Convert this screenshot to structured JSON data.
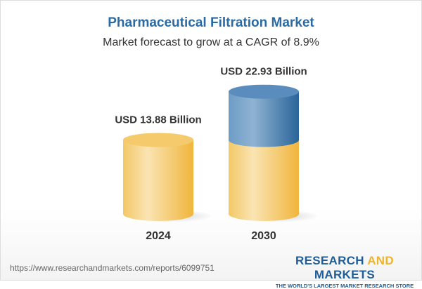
{
  "chart_data": {
    "type": "bar",
    "title": "Pharmaceutical Filtration Market",
    "subtitle": "Market forecast to grow at a CAGR of 8.9%",
    "categories": [
      "2024",
      "2030"
    ],
    "values": [
      13.88,
      22.93
    ],
    "data_labels": [
      "USD 13.88 Billion",
      "USD 22.93 Billion"
    ],
    "unit": "USD Billion",
    "style": "3d-cylinder",
    "colors": {
      "base": "#f2c45a",
      "growth": "#4a82b4"
    }
  },
  "footer": {
    "url": "https://www.researchandmarkets.com/reports/6099751",
    "logo_line1_a": "RESEARCH ",
    "logo_line1_b": "AND",
    "logo_line1_c": " MARKETS",
    "logo_line2": "THE WORLD'S LARGEST MARKET RESEARCH STORE"
  }
}
